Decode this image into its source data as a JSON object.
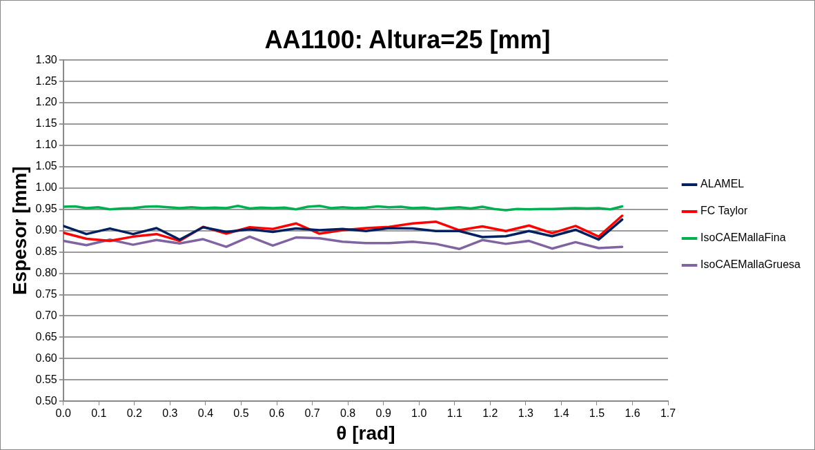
{
  "chart_data": {
    "type": "line",
    "title": "AA1100: Altura=25 [mm]",
    "xlabel": "θ [rad]",
    "ylabel": "Espesor [mm]",
    "x": [
      0,
      0.065,
      0.131,
      0.196,
      0.262,
      0.327,
      0.393,
      0.458,
      0.524,
      0.589,
      0.654,
      0.72,
      0.785,
      0.851,
      0.916,
      0.982,
      1.047,
      1.113,
      1.178,
      1.244,
      1.309,
      1.374,
      1.44,
      1.505,
      1.571
    ],
    "series": [
      {
        "name": "ALAMEL",
        "color": "#002060",
        "values": [
          0.911,
          0.892,
          0.905,
          0.892,
          0.906,
          0.879,
          0.908,
          0.897,
          0.903,
          0.897,
          0.905,
          0.901,
          0.904,
          0.899,
          0.906,
          0.905,
          0.899,
          0.899,
          0.885,
          0.887,
          0.899,
          0.887,
          0.902,
          0.879,
          0.926
        ]
      },
      {
        "name": "FC Taylor",
        "color": "#ff0000",
        "values": [
          0.895,
          0.881,
          0.876,
          0.886,
          0.892,
          0.876,
          0.909,
          0.893,
          0.908,
          0.904,
          0.917,
          0.893,
          0.901,
          0.906,
          0.909,
          0.917,
          0.921,
          0.901,
          0.91,
          0.899,
          0.912,
          0.894,
          0.911,
          0.886,
          0.935
        ]
      },
      {
        "name": "IsoCAEMallaFina",
        "color": "#00b050",
        "x": [
          0,
          0.033,
          0.065,
          0.098,
          0.131,
          0.164,
          0.196,
          0.229,
          0.262,
          0.295,
          0.327,
          0.36,
          0.393,
          0.425,
          0.458,
          0.491,
          0.524,
          0.556,
          0.589,
          0.622,
          0.654,
          0.687,
          0.72,
          0.753,
          0.785,
          0.818,
          0.851,
          0.884,
          0.916,
          0.949,
          0.982,
          1.014,
          1.047,
          1.08,
          1.113,
          1.145,
          1.178,
          1.211,
          1.244,
          1.276,
          1.309,
          1.342,
          1.374,
          1.407,
          1.44,
          1.473,
          1.505,
          1.538,
          1.571
        ],
        "values": [
          0.956,
          0.957,
          0.953,
          0.955,
          0.95,
          0.952,
          0.953,
          0.956,
          0.957,
          0.955,
          0.953,
          0.955,
          0.953,
          0.954,
          0.953,
          0.958,
          0.952,
          0.954,
          0.953,
          0.954,
          0.95,
          0.956,
          0.958,
          0.953,
          0.955,
          0.953,
          0.954,
          0.957,
          0.955,
          0.956,
          0.953,
          0.954,
          0.951,
          0.953,
          0.955,
          0.952,
          0.956,
          0.951,
          0.948,
          0.951,
          0.95,
          0.951,
          0.951,
          0.952,
          0.953,
          0.952,
          0.953,
          0.95,
          0.957
        ]
      },
      {
        "name": "IsoCAEMallaGruesa",
        "color": "#8064a2",
        "values": [
          0.876,
          0.866,
          0.879,
          0.867,
          0.878,
          0.87,
          0.88,
          0.862,
          0.886,
          0.865,
          0.884,
          0.882,
          0.874,
          0.871,
          0.871,
          0.874,
          0.869,
          0.857,
          0.878,
          0.869,
          0.876,
          0.858,
          0.873,
          0.859,
          0.862
        ]
      }
    ],
    "xlim": [
      0,
      1.7
    ],
    "xticks": [
      {
        "value": 0,
        "label": "0.0"
      },
      0.1,
      0.2,
      0.3,
      0.4,
      0.5,
      0.6,
      0.7,
      0.8,
      0.9,
      {
        "value": 1,
        "label": "1.0"
      },
      1.1,
      1.2,
      1.3,
      1.4,
      1.5,
      1.6,
      1.7
    ],
    "ylim": [
      0.5,
      1.3
    ],
    "yticks": [
      {
        "value": 0.5,
        "label": "0.50"
      },
      0.55,
      {
        "value": 0.6,
        "label": "0.60"
      },
      0.65,
      {
        "value": 0.7,
        "label": "0.70"
      },
      0.75,
      {
        "value": 0.8,
        "label": "0.80"
      },
      0.85,
      {
        "value": 0.9,
        "label": "0.90"
      },
      0.95,
      {
        "value": 1,
        "label": "1.00"
      },
      1.05,
      {
        "value": 1.1,
        "label": "1.10"
      },
      1.15,
      {
        "value": 1.2,
        "label": "1.20"
      },
      1.25,
      {
        "value": 1.3,
        "label": "1.30"
      }
    ],
    "grid": "y",
    "legend": "right",
    "marker": "none",
    "line_style": "solid"
  }
}
